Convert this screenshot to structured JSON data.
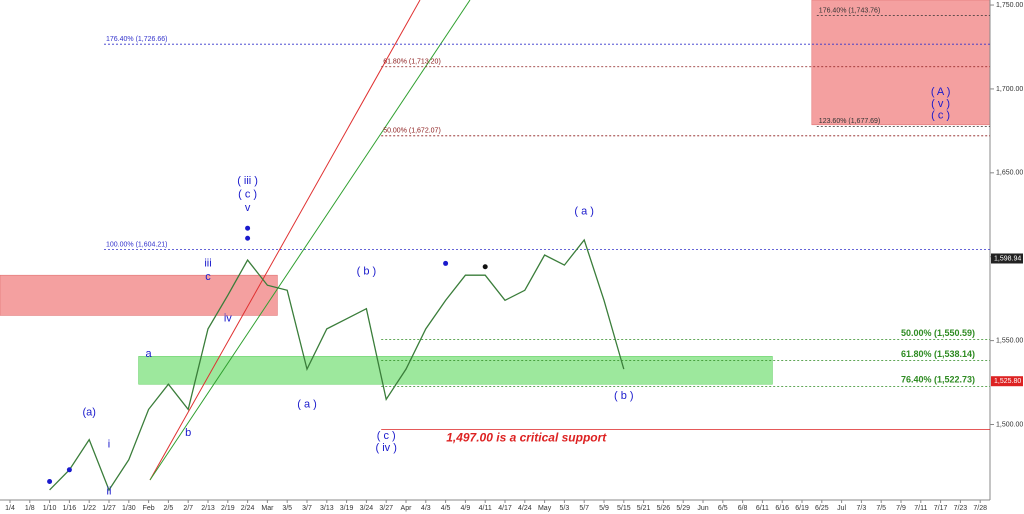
{
  "chart_data": {
    "type": "line",
    "categories": [
      "1/4",
      "1/8",
      "1/10",
      "1/16",
      "1/22",
      "1/27",
      "1/30",
      "Feb",
      "2/5",
      "2/7",
      "2/13",
      "2/19",
      "2/24",
      "Mar",
      "3/5",
      "3/7",
      "3/13",
      "3/19",
      "3/24",
      "3/27",
      "Apr",
      "4/3",
      "4/5",
      "4/9",
      "4/11",
      "4/17",
      "4/24",
      "May",
      "5/3",
      "5/7",
      "5/9",
      "5/15",
      "5/21",
      "5/26",
      "5/29",
      "Jun",
      "6/5",
      "6/8",
      "6/11",
      "6/16",
      "6/19",
      "6/25",
      "Jul",
      "7/3",
      "7/5",
      "7/9",
      "7/11",
      "7/17",
      "7/23",
      "7/28"
    ],
    "values": [
      null,
      null,
      1461,
      1473,
      1491,
      1461,
      1479,
      1509,
      1524,
      1509,
      1557,
      1577,
      1598,
      1583,
      1580,
      1533,
      1557,
      1563,
      1569,
      1515,
      1533,
      1557,
      1574,
      1589,
      1589,
      1574,
      1580,
      1601,
      1595,
      1610,
      1574,
      1533,
      null,
      null,
      null,
      null,
      null,
      null,
      null,
      null,
      null,
      null,
      null,
      null,
      null,
      null,
      null,
      null,
      null,
      null
    ],
    "color": "#3a7d3a",
    "ylim": [
      1455,
      1753
    ],
    "yticks": [
      {
        "value": 1500,
        "label": "1,500.00"
      },
      {
        "value": 1550,
        "label": "1,550.00"
      },
      {
        "value": 1600,
        "label": "1,600.00"
      },
      {
        "value": 1650,
        "label": "1,650.00"
      },
      {
        "value": 1700,
        "label": "1,700.00"
      },
      {
        "value": 1750,
        "label": "1,750.00"
      }
    ],
    "zones": [
      {
        "from": "1/4",
        "to": "Mar",
        "top": 1589,
        "bottom": 1565,
        "color": "#f4a0a0"
      },
      {
        "from": "Feb",
        "to": "6/11",
        "top": 1540.6,
        "bottom": 1524,
        "color": "#9de89d"
      },
      {
        "from": "6/25",
        "to": "7/28",
        "top": 1753,
        "bottom": 1678.6,
        "color": "#f4a0a0"
      }
    ],
    "levels": [
      {
        "value": 1743.76,
        "label": "176.40% (1,743.76)",
        "from": "6/25",
        "color": "#333333",
        "label_side": "left"
      },
      {
        "value": 1726.66,
        "label": "176.40% (1,726.66)",
        "from": "1/27",
        "color": "#3333cc",
        "label_side": "left"
      },
      {
        "value": 1713.2,
        "label": "61.80% (1,713.20)",
        "from": "3/27",
        "color": "#8b1a1a",
        "label_side": "left"
      },
      {
        "value": 1677.69,
        "label": "123.60% (1,677.69)",
        "from": "6/25",
        "color": "#333333",
        "label_side": "left"
      },
      {
        "value": 1672.07,
        "label": "50.00% (1,672.07)",
        "from": "3/27",
        "color": "#8b1a1a",
        "label_side": "left"
      },
      {
        "value": 1604.21,
        "label": "100.00% (1,604.21)",
        "from": "1/27",
        "color": "#3333cc",
        "label_side": "left"
      },
      {
        "value": 1550.59,
        "label": "50.00% (1,550.59)",
        "from": "3/27",
        "color": "#2e8b22",
        "label_side": "right"
      },
      {
        "value": 1538.14,
        "label": "61.80% (1,538.14)",
        "from": "3/27",
        "color": "#2e8b22",
        "label_side": "right"
      },
      {
        "value": 1522.73,
        "label": "76.40% (1,522.73)",
        "from": "3/27",
        "color": "#2e8b22",
        "label_side": "right"
      },
      {
        "value": 1497.0,
        "label": "1,497.00 is a critical support",
        "from": "3/27",
        "color": "#dd2222",
        "label_side": "below"
      }
    ],
    "price_tags": [
      {
        "value": 1598.94,
        "label": "1,598.94",
        "color": "#222222"
      },
      {
        "value": 1525.8,
        "label": "1,525.80",
        "color": "#dd2222"
      }
    ],
    "annotations": [
      {
        "text": "(a)",
        "x": "1/22",
        "y": 1507
      },
      {
        "text": "i",
        "x": "1/27",
        "y": 1488
      },
      {
        "text": "ii",
        "x": "1/27",
        "y": 1460
      },
      {
        "text": "a",
        "x": "Feb",
        "y": 1542
      },
      {
        "text": "b",
        "x": "2/7",
        "y": 1495
      },
      {
        "text": "iii",
        "x": "2/13",
        "y": 1596
      },
      {
        "text": "c",
        "x": "2/13",
        "y": 1588
      },
      {
        "text": "iv",
        "x": "2/19",
        "y": 1563
      },
      {
        "text": "( iii )",
        "x": "2/24",
        "y": 1645
      },
      {
        "text": "( c )",
        "x": "2/24",
        "y": 1637
      },
      {
        "text": "v",
        "x": "2/24",
        "y": 1629
      },
      {
        "text": "( a )",
        "x": "3/7",
        "y": 1512
      },
      {
        "text": "( b )",
        "x": "3/24",
        "y": 1591
      },
      {
        "text": "( c )",
        "x": "3/27",
        "y": 1493
      },
      {
        "text": "( iv )",
        "x": "3/27",
        "y": 1486
      },
      {
        "text": "( a )",
        "x": "5/7",
        "y": 1627
      },
      {
        "text": "( b )",
        "x": "5/15",
        "y": 1517
      },
      {
        "text": "( A )",
        "x": "7/17",
        "y": 1698
      },
      {
        "text": "( v )",
        "x": "7/17",
        "y": 1691
      },
      {
        "text": "( c )",
        "x": "7/17",
        "y": 1684
      }
    ],
    "dots": [
      {
        "x": "1/10",
        "y": 1466,
        "color": "#1a1acc"
      },
      {
        "x": "1/16",
        "y": 1473,
        "color": "#1a1acc"
      },
      {
        "x": "2/24",
        "y": 1611,
        "color": "#1a1acc"
      },
      {
        "x": "2/24",
        "y": 1617,
        "color": "#1a1acc"
      },
      {
        "x": "4/5",
        "y": 1596,
        "color": "#1a1acc"
      },
      {
        "x": "4/11",
        "y": 1594,
        "color": "#111111"
      }
    ]
  }
}
